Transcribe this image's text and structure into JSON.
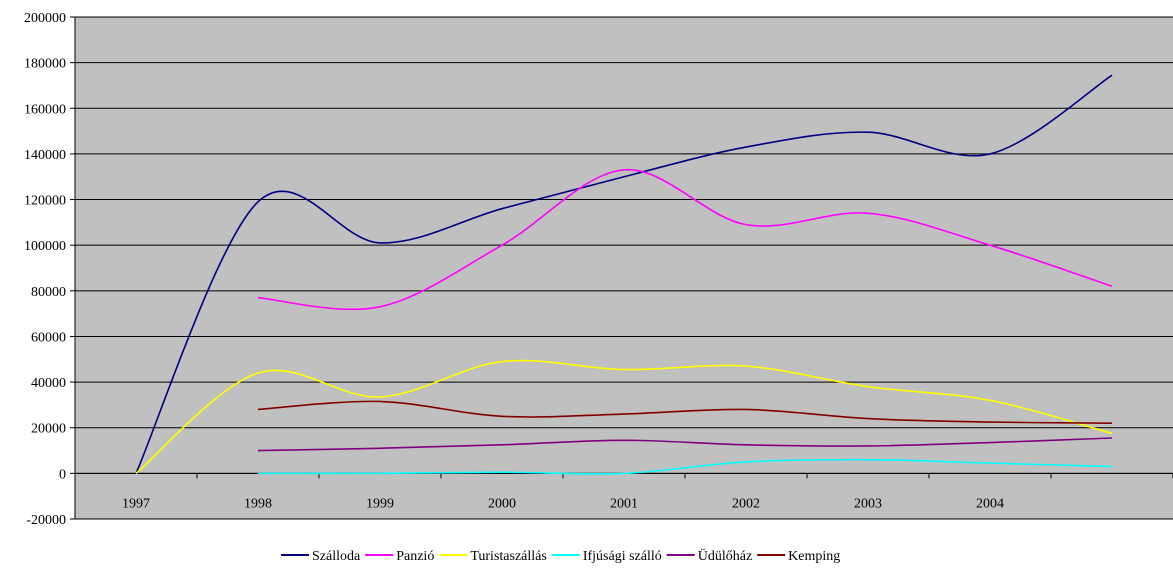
{
  "chart_data": {
    "type": "line",
    "title": "",
    "xlabel": "",
    "ylabel": "",
    "categories": [
      "1997",
      "1998",
      "1999",
      "2000",
      "2001",
      "2002",
      "2003",
      "2004",
      ""
    ],
    "ylim": [
      -20000,
      200000
    ],
    "ytick_step": 20000,
    "grid": true,
    "smooth": true,
    "legend_position": "bottom",
    "plot_background": "#c0c0c0",
    "series": [
      {
        "name": "Szálloda",
        "color": "#000080",
        "values": [
          0,
          119000,
          101000,
          116000,
          130000,
          143000,
          149500,
          140000,
          174500
        ]
      },
      {
        "name": "Panzió",
        "color": "#ff00ff",
        "values": [
          null,
          77000,
          73000,
          100000,
          133000,
          109000,
          114000,
          100000,
          82000
        ]
      },
      {
        "name": "Turistaszállás",
        "color": "#ffff00",
        "values": [
          0,
          44000,
          33500,
          49000,
          45500,
          47000,
          38000,
          32000,
          17500
        ]
      },
      {
        "name": "Ifjúsági szálló",
        "color": "#00ffff",
        "values": [
          null,
          0,
          0,
          500,
          0,
          5000,
          6000,
          4500,
          3000
        ]
      },
      {
        "name": "Üdülőház",
        "color": "#800080",
        "values": [
          null,
          10000,
          11000,
          12500,
          14500,
          12500,
          12000,
          13500,
          15500
        ]
      },
      {
        "name": "Kemping",
        "color": "#800000",
        "values": [
          null,
          28000,
          31500,
          25000,
          26000,
          28000,
          24000,
          22500,
          22000
        ]
      }
    ]
  }
}
